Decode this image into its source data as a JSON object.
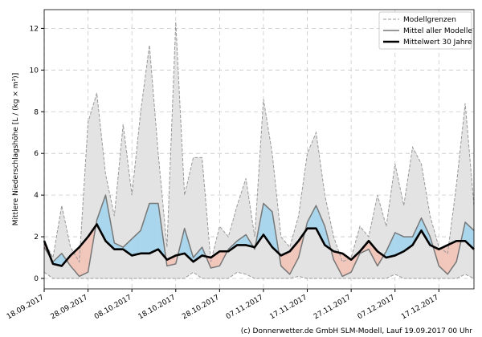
{
  "chart_data": {
    "type": "ensemble",
    "ylabel": "Mittlere Niederschlagshöhe [L / (kg × m²)]",
    "footer": "(c) Donnerwetter.de GmbH SLM-Modell, Lauf 19.09.2017 00 Uhr",
    "x": [
      "18.09.2017",
      "20.09.2017",
      "22.09.2017",
      "24.09.2017",
      "26.09.2017",
      "28.09.2017",
      "30.09.2017",
      "02.10.2017",
      "04.10.2017",
      "06.10.2017",
      "08.10.2017",
      "10.10.2017",
      "12.10.2017",
      "14.10.2017",
      "16.10.2017",
      "18.10.2017",
      "20.10.2017",
      "22.10.2017",
      "24.10.2017",
      "26.10.2017",
      "28.10.2017",
      "30.10.2017",
      "01.11.2017",
      "03.11.2017",
      "05.11.2017",
      "07.11.2017",
      "09.11.2017",
      "11.11.2017",
      "13.11.2017",
      "15.11.2017",
      "17.11.2017",
      "19.11.2017",
      "21.11.2017",
      "23.11.2017",
      "25.11.2017",
      "27.11.2017",
      "29.11.2017",
      "01.12.2017",
      "03.12.2017",
      "05.12.2017",
      "07.12.2017",
      "09.12.2017",
      "11.12.2017",
      "13.12.2017",
      "15.12.2017",
      "17.12.2017",
      "19.12.2017",
      "21.12.2017",
      "23.12.2017",
      "25.12.2017"
    ],
    "band": {
      "name": "Modellgrenzen",
      "color": "#e3e3e3",
      "line_color": "#999999",
      "upper": [
        1.8,
        1.0,
        3.5,
        1.5,
        0.8,
        7.5,
        8.9,
        5.0,
        3.0,
        7.4,
        4.0,
        8.0,
        11.2,
        6.0,
        1.5,
        12.3,
        4.0,
        5.8,
        5.8,
        0.8,
        2.5,
        2.0,
        3.5,
        4.8,
        2.0,
        8.6,
        6.0,
        2.0,
        1.5,
        3.0,
        6.0,
        7.0,
        4.0,
        2.0,
        0.8,
        1.0,
        2.5,
        2.0,
        4.0,
        2.5,
        5.5,
        3.5,
        6.3,
        5.5,
        3.0,
        1.5,
        1.2,
        4.5,
        8.4,
        3.5
      ],
      "lower": [
        0.3,
        0.0,
        0.0,
        0.0,
        0.0,
        0.0,
        0.0,
        0.0,
        0.0,
        0.0,
        0.0,
        0.0,
        0.0,
        0.0,
        0.0,
        0.0,
        0.0,
        0.3,
        0.0,
        0.0,
        0.0,
        0.0,
        0.3,
        0.2,
        0.0,
        0.0,
        0.0,
        0.0,
        0.0,
        0.1,
        0.0,
        0.0,
        0.0,
        0.0,
        0.0,
        0.0,
        0.0,
        0.0,
        0.0,
        0.0,
        0.2,
        0.0,
        0.0,
        0.0,
        0.0,
        0.0,
        0.0,
        0.0,
        0.2,
        0.0
      ]
    },
    "series": [
      {
        "name": "Mittel aller Modelle",
        "color": "#777777",
        "values": [
          1.5,
          0.8,
          1.2,
          0.6,
          0.1,
          0.3,
          2.8,
          4.0,
          1.7,
          1.5,
          1.9,
          2.3,
          3.6,
          3.6,
          0.6,
          0.7,
          2.4,
          1.0,
          1.5,
          0.5,
          0.6,
          1.4,
          1.8,
          2.1,
          1.4,
          3.6,
          3.2,
          0.6,
          0.2,
          1.0,
          2.7,
          3.5,
          2.5,
          0.9,
          0.1,
          0.3,
          1.2,
          1.4,
          0.6,
          1.3,
          2.2,
          2.0,
          2.0,
          2.9,
          2.0,
          0.6,
          0.2,
          0.8,
          2.7,
          2.3
        ]
      },
      {
        "name": "Mittelwert 30 Jahre",
        "color": "#000000",
        "values": [
          1.8,
          0.7,
          0.6,
          1.1,
          1.5,
          2.0,
          2.6,
          1.8,
          1.4,
          1.4,
          1.1,
          1.2,
          1.2,
          1.4,
          0.9,
          1.1,
          1.2,
          0.8,
          1.1,
          1.0,
          1.3,
          1.3,
          1.6,
          1.6,
          1.5,
          2.1,
          1.5,
          1.1,
          1.3,
          1.8,
          2.4,
          2.4,
          1.6,
          1.3,
          1.2,
          0.9,
          1.3,
          1.8,
          1.3,
          1.0,
          1.1,
          1.3,
          1.6,
          2.3,
          1.6,
          1.4,
          1.6,
          1.8,
          1.8,
          1.4
        ]
      }
    ],
    "above_color": "#a9d6ec",
    "below_color": "#f1c6bb",
    "xlim": [
      "18.09.2017",
      "25.12.2017"
    ],
    "xticks": [
      "18.09.2017",
      "28.09.2017",
      "08.10.2017",
      "18.10.2017",
      "28.10.2017",
      "07.11.2017",
      "17.11.2017",
      "27.11.2017",
      "07.12.2017",
      "17.12.2017"
    ],
    "ylim": [
      -0.5,
      12.9
    ],
    "yticks": [
      0,
      2,
      4,
      6,
      8,
      10,
      12
    ],
    "grid": true,
    "legend": "upper right"
  }
}
